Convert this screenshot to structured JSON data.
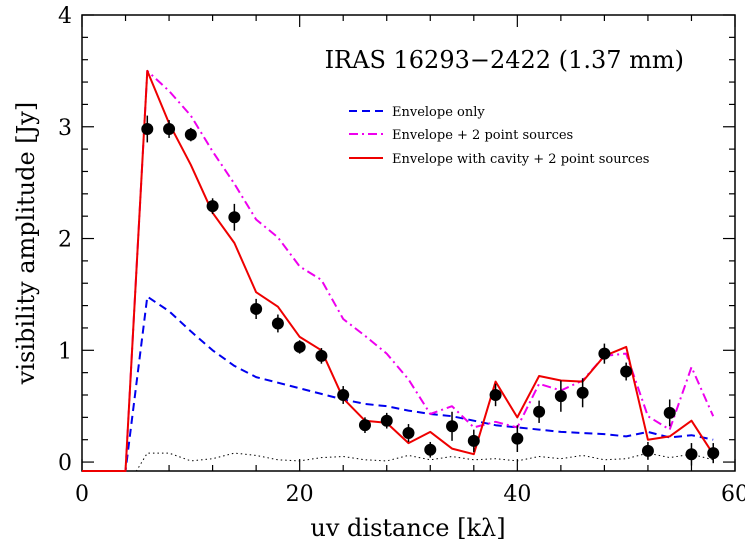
{
  "chart_data": {
    "type": "line",
    "title": "IRAS 16293−2422 (1.37 mm)",
    "xlabel": "uv distance [kλ]",
    "ylabel": "visibility amplitude [Jy]",
    "xlim": [
      0,
      60
    ],
    "ylim": [
      -0.08,
      4.0
    ],
    "x_ticks": [
      0,
      20,
      40,
      60
    ],
    "y_ticks": [
      0,
      1,
      2,
      3,
      4
    ],
    "x_tick_labels": [
      "0",
      "20",
      "40",
      "60"
    ],
    "y_tick_labels": [
      "0",
      "1",
      "2",
      "3",
      "4"
    ],
    "legend_position": "upper-right",
    "observed": {
      "x": [
        6,
        8,
        10,
        12,
        14,
        16,
        18,
        20,
        22,
        24,
        26,
        28,
        30,
        32,
        34,
        36,
        38,
        40,
        42,
        44,
        46,
        48,
        50,
        52,
        54,
        56,
        58
      ],
      "y": [
        2.98,
        2.98,
        2.93,
        2.29,
        2.19,
        1.37,
        1.24,
        1.03,
        0.95,
        0.6,
        0.33,
        0.37,
        0.26,
        0.11,
        0.32,
        0.19,
        0.6,
        0.21,
        0.45,
        0.59,
        0.62,
        0.97,
        0.81,
        0.1,
        0.44,
        0.07,
        0.08
      ],
      "err": [
        0.12,
        0.08,
        0.06,
        0.07,
        0.12,
        0.09,
        0.08,
        0.06,
        0.07,
        0.08,
        0.07,
        0.07,
        0.08,
        0.07,
        0.13,
        0.1,
        0.1,
        0.12,
        0.1,
        0.14,
        0.13,
        0.09,
        0.08,
        0.08,
        0.12,
        0.1,
        0.09
      ]
    },
    "noise_level": {
      "x": [
        0,
        5,
        6,
        8,
        10,
        12,
        14,
        16,
        18,
        20,
        22,
        24,
        26,
        28,
        30,
        32,
        34,
        36,
        38,
        40,
        42,
        44,
        46,
        48,
        50,
        52,
        54,
        56,
        58
      ],
      "y": [
        -0.08,
        -0.08,
        0.08,
        0.08,
        0.01,
        0.03,
        0.08,
        0.06,
        0.02,
        0.01,
        0.04,
        0.05,
        0.02,
        0.01,
        0.06,
        0.02,
        0.05,
        0.02,
        0.03,
        0.01,
        0.05,
        0.03,
        0.06,
        0.02,
        0.03,
        0.08,
        0.04,
        0.07,
        0.02
      ]
    },
    "series": [
      {
        "name": "Envelope only",
        "color": "#0000ee",
        "dash": "dashed",
        "x": [
          0,
          4,
          6,
          8,
          10,
          12,
          14,
          16,
          18,
          20,
          22,
          24,
          26,
          28,
          30,
          32,
          34,
          36,
          38,
          40,
          42,
          44,
          46,
          48,
          50,
          52,
          54,
          56,
          58
        ],
        "y": [
          -0.08,
          -0.08,
          1.48,
          1.35,
          1.17,
          1.0,
          0.86,
          0.76,
          0.71,
          0.66,
          0.61,
          0.56,
          0.52,
          0.5,
          0.46,
          0.43,
          0.41,
          0.37,
          0.33,
          0.31,
          0.29,
          0.27,
          0.26,
          0.25,
          0.23,
          0.27,
          0.22,
          0.24,
          0.2
        ]
      },
      {
        "name": "Envelope + 2 point sources",
        "color": "#ee00ee",
        "dash": "dashdot",
        "x": [
          0,
          4,
          6,
          8,
          10,
          12,
          14,
          16,
          18,
          20,
          22,
          24,
          26,
          28,
          30,
          32,
          34,
          36,
          38,
          40,
          42,
          44,
          46,
          48,
          50,
          52,
          54,
          56,
          58
        ],
        "y": [
          -0.08,
          -0.08,
          3.5,
          3.32,
          3.1,
          2.78,
          2.49,
          2.17,
          2.01,
          1.75,
          1.63,
          1.28,
          1.13,
          0.97,
          0.74,
          0.43,
          0.5,
          0.31,
          0.36,
          0.31,
          0.7,
          0.64,
          0.73,
          0.95,
          0.97,
          0.41,
          0.29,
          0.85,
          0.41
        ]
      },
      {
        "name": "Envelope with cavity + 2 point sources",
        "color": "#ee0000",
        "dash": "solid",
        "x": [
          0,
          4,
          6,
          8,
          10,
          12,
          14,
          16,
          18,
          20,
          22,
          24,
          26,
          28,
          30,
          32,
          34,
          36,
          38,
          40,
          42,
          44,
          46,
          48,
          50,
          52,
          54,
          56,
          58
        ],
        "y": [
          -0.08,
          -0.08,
          3.5,
          3.03,
          2.66,
          2.23,
          1.96,
          1.52,
          1.39,
          1.12,
          1.0,
          0.57,
          0.37,
          0.35,
          0.17,
          0.27,
          0.12,
          0.07,
          0.72,
          0.4,
          0.77,
          0.73,
          0.72,
          0.95,
          1.03,
          0.2,
          0.23,
          0.37,
          0.07
        ]
      }
    ]
  }
}
